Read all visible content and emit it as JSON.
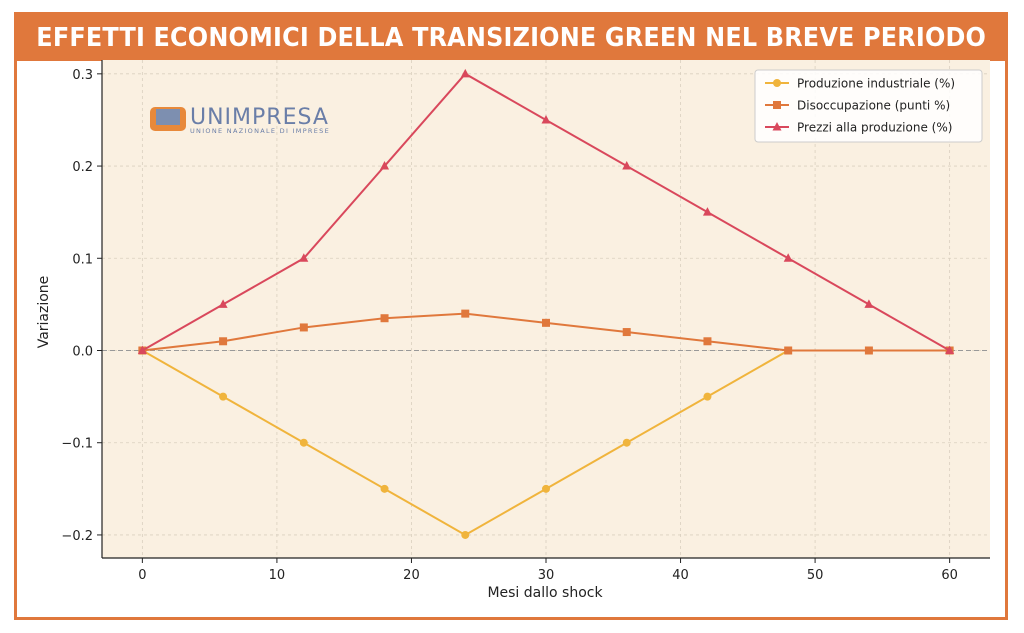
{
  "header": {
    "title": "EFFETTI ECONOMICI DELLA TRANSIZIONE GREEN NEL BREVE PERIODO"
  },
  "logo": {
    "brand": "UNIMPRESA",
    "tagline": "UNIONE NAZIONALE DI IMPRESE"
  },
  "colors": {
    "frame": "#e0783c",
    "plot_background": "#faf0e1",
    "produzione": "#f0b43c",
    "disoccupazione": "#e0783c",
    "prezzi": "#d9485c",
    "zero_line": "#999999"
  },
  "chart_data": {
    "type": "line",
    "title": "",
    "xlabel": "Mesi dallo shock",
    "ylabel": "Variazione",
    "x": [
      0,
      6,
      12,
      18,
      24,
      30,
      36,
      42,
      48,
      54,
      60
    ],
    "xlim": [
      -3,
      63
    ],
    "ylim": [
      -0.225,
      0.315
    ],
    "xticks": [
      0,
      10,
      20,
      30,
      40,
      50,
      60
    ],
    "xtick_labels": [
      "0",
      "10",
      "20",
      "30",
      "40",
      "50",
      "60"
    ],
    "yticks": [
      -0.2,
      -0.1,
      0.0,
      0.1,
      0.2,
      0.3
    ],
    "ytick_labels": [
      "−0.2",
      "−0.1",
      "0.0",
      "0.1",
      "0.2",
      "0.3"
    ],
    "grid": true,
    "legend_position": "top-right",
    "series": [
      {
        "name": "Produzione industriale (%)",
        "marker": "circle",
        "color": "#f0b43c",
        "values": [
          0,
          -0.05,
          -0.1,
          -0.15,
          -0.2,
          -0.15,
          -0.1,
          -0.05,
          0,
          0,
          0
        ]
      },
      {
        "name": "Disoccupazione (punti %)",
        "marker": "square",
        "color": "#e0783c",
        "values": [
          0,
          0.01,
          0.025,
          0.035,
          0.04,
          0.03,
          0.02,
          0.01,
          0,
          0,
          0
        ]
      },
      {
        "name": "Prezzi alla produzione (%)",
        "marker": "triangle",
        "color": "#d9485c",
        "values": [
          0,
          0.05,
          0.1,
          0.2,
          0.3,
          0.25,
          0.2,
          0.15,
          0.1,
          0.05,
          0
        ]
      }
    ]
  }
}
